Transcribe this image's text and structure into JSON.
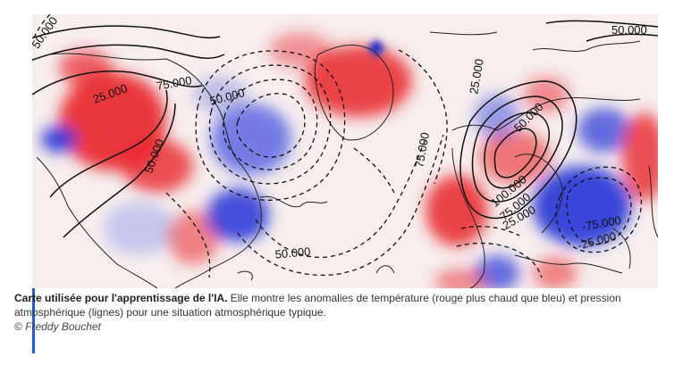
{
  "figure": {
    "caption_lead": "Carte utilisée pour l'apprentissage de l'IA.",
    "caption_text": "Elle montre les anomalies de température (rouge plus chaud que bleu) et pression atmosphérique (lignes) pour une situation atmosphérique typique.",
    "credit": "© Freddy Bouchet"
  },
  "map": {
    "contour_labels": [
      "50.000",
      "50.000",
      "25.000",
      "75.000",
      "50.000",
      "50.000",
      "75.000",
      "25.000",
      "50.000",
      "100.000",
      "75.000",
      "25.000",
      "-25.000",
      "-75.000",
      "50.000"
    ],
    "colors": {
      "warm": "#e8242a",
      "cold": "#2433d6",
      "neutral": "#f6efee",
      "accent": "#1f5fd6"
    }
  }
}
